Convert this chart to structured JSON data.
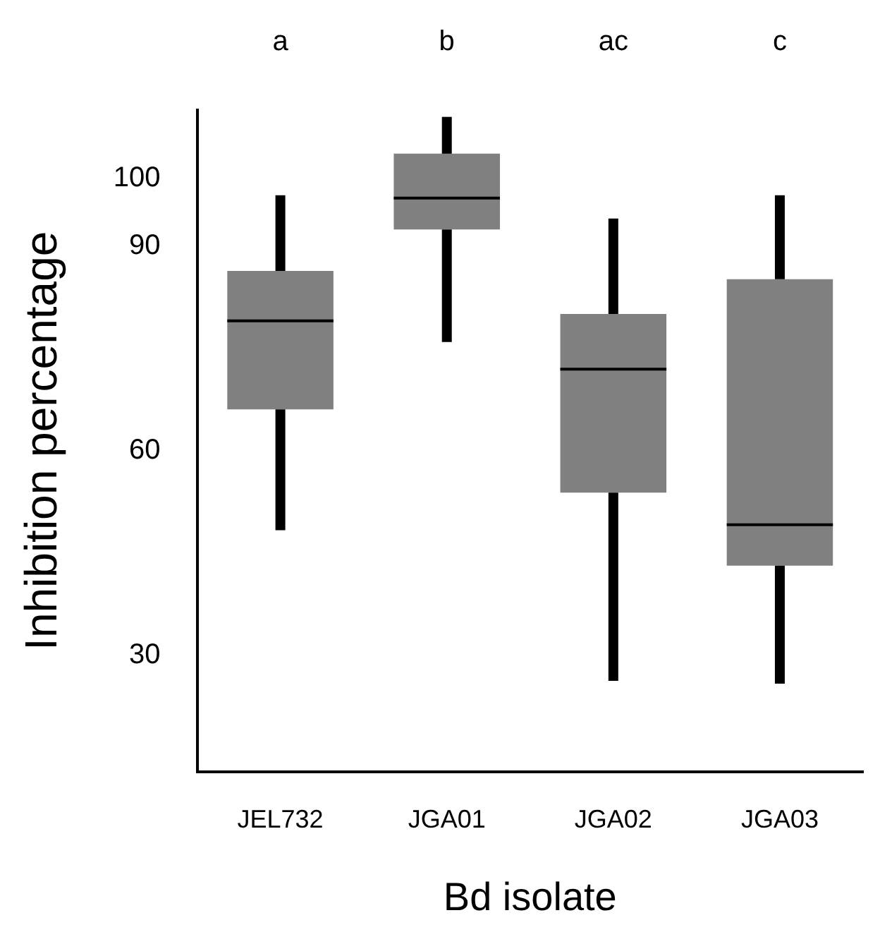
{
  "chart_data": {
    "type": "box",
    "xlabel": "Bd isolate",
    "ylabel": "Inhibition percentage",
    "categories": [
      "JEL732",
      "JGA01",
      "JGA02",
      "JGA03"
    ],
    "color": "#808080",
    "boxes": [
      {
        "low": 48.4,
        "q1": 66.1,
        "median": 79.1,
        "q3": 86.4,
        "high": 97.5
      },
      {
        "low": 76,
        "q1": 92.5,
        "median": 97.1,
        "q3": 103.6,
        "high": 109
      },
      {
        "low": 26.3,
        "q1": 53.9,
        "median": 72,
        "q3": 80.1,
        "high": 94.1
      },
      {
        "low": 25.9,
        "q1": 43.2,
        "median": 49.2,
        "q3": 85.2,
        "high": 97.5
      }
    ],
    "annotations": [
      "a",
      "b",
      "ac",
      "c"
    ],
    "ylim": [
      13,
      110
    ],
    "yticks": [
      30,
      60,
      90,
      100
    ],
    "grid": false,
    "legend": false
  }
}
